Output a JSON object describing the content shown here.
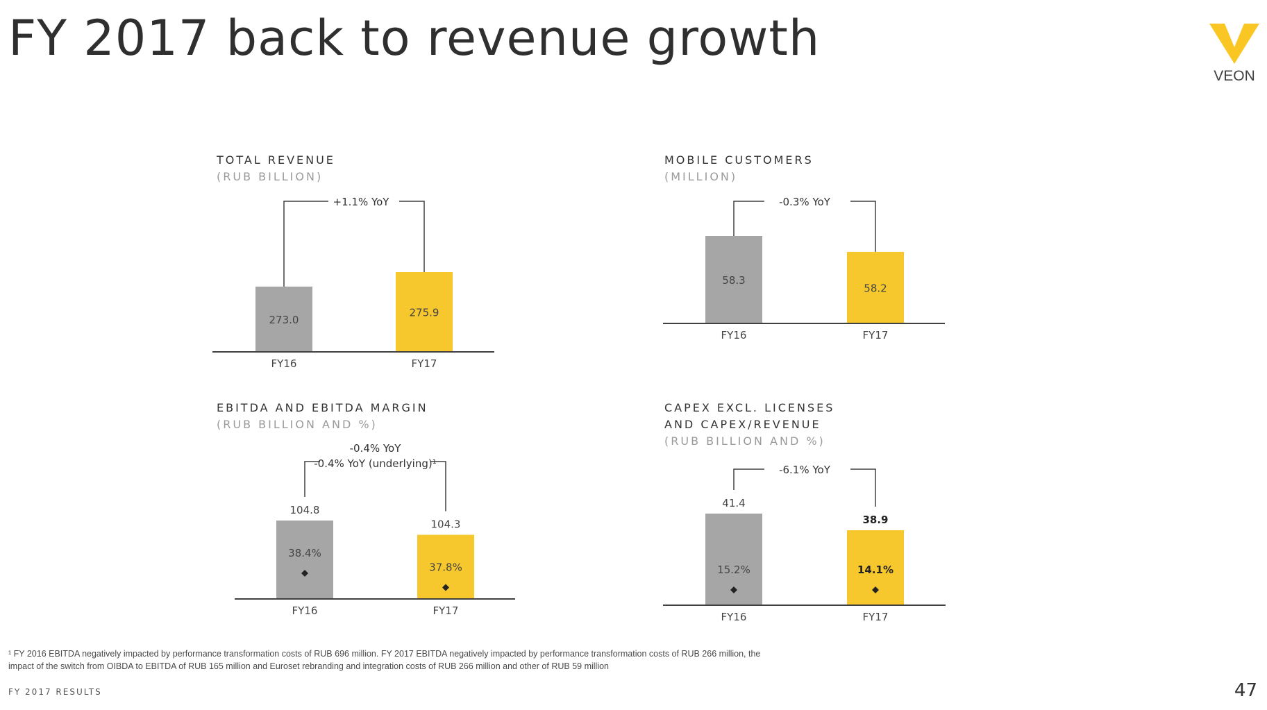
{
  "title": "FY 2017 back to revenue growth",
  "logo": {
    "text": "VEON",
    "color": "#F9C623"
  },
  "colors": {
    "prior": "#A6A6A6",
    "current": "#F7C82D",
    "axis": "#404040",
    "bracket": "#404040"
  },
  "chart_data": [
    {
      "type": "bar",
      "title": "TOTAL REVENUE",
      "subtitle": "(RUB BILLION)",
      "categories": [
        "FY16",
        "FY17"
      ],
      "values": [
        273.0,
        275.9
      ],
      "value_labels": [
        "273.0",
        "275.9"
      ],
      "label_position": "inside",
      "bold_current": false,
      "bracket_label": [
        "+1.1% YoY"
      ],
      "margin_values": null
    },
    {
      "type": "bar",
      "title": "MOBILE CUSTOMERS",
      "subtitle": "(MILLION)",
      "categories": [
        "FY16",
        "FY17"
      ],
      "values": [
        58.3,
        58.2
      ],
      "value_labels": [
        "58.3",
        "58.2"
      ],
      "label_position": "inside",
      "bold_current": false,
      "bracket_label": [
        "-0.3% YoY"
      ],
      "margin_values": null
    },
    {
      "type": "bar",
      "title": "EBITDA AND EBITDA MARGIN",
      "subtitle": "(RUB BILLION AND %)",
      "categories": [
        "FY16",
        "FY17"
      ],
      "values": [
        104.8,
        104.3
      ],
      "value_labels": [
        "104.8",
        "104.3"
      ],
      "label_position": "above",
      "bold_current": false,
      "bracket_label": [
        "-0.4% YoY",
        "-0.4% YoY (underlying)¹"
      ],
      "margin_values": [
        38.4,
        37.8
      ],
      "margin_labels": [
        "38.4%",
        "37.8%"
      ]
    },
    {
      "type": "bar",
      "title": "CAPEX EXCL. LICENSES",
      "title_line2": "AND CAPEX/REVENUE",
      "subtitle": "(RUB BILLION AND %)",
      "categories": [
        "FY16",
        "FY17"
      ],
      "values": [
        41.4,
        38.9
      ],
      "value_labels": [
        "41.4",
        "38.9"
      ],
      "label_position": "above",
      "bold_current": true,
      "bracket_label": [
        "-6.1% YoY"
      ],
      "margin_values": [
        15.2,
        14.1
      ],
      "margin_labels": [
        "15.2%",
        "14.1%"
      ]
    }
  ],
  "footnote": {
    "line1": "¹ FY 2016 EBITDA negatively impacted by performance transformation costs of RUB 696 million. FY 2017 EBITDA negatively impacted by performance transformation costs of RUB 266 million, the",
    "line2": "impact of the switch from OIBDA to EBITDA of RUB 165 million and Euroset rebranding and integration costs of RUB 266 million and other of RUB 59 million"
  },
  "footer": {
    "label": "FY 2017 RESULTS",
    "page": "47"
  }
}
